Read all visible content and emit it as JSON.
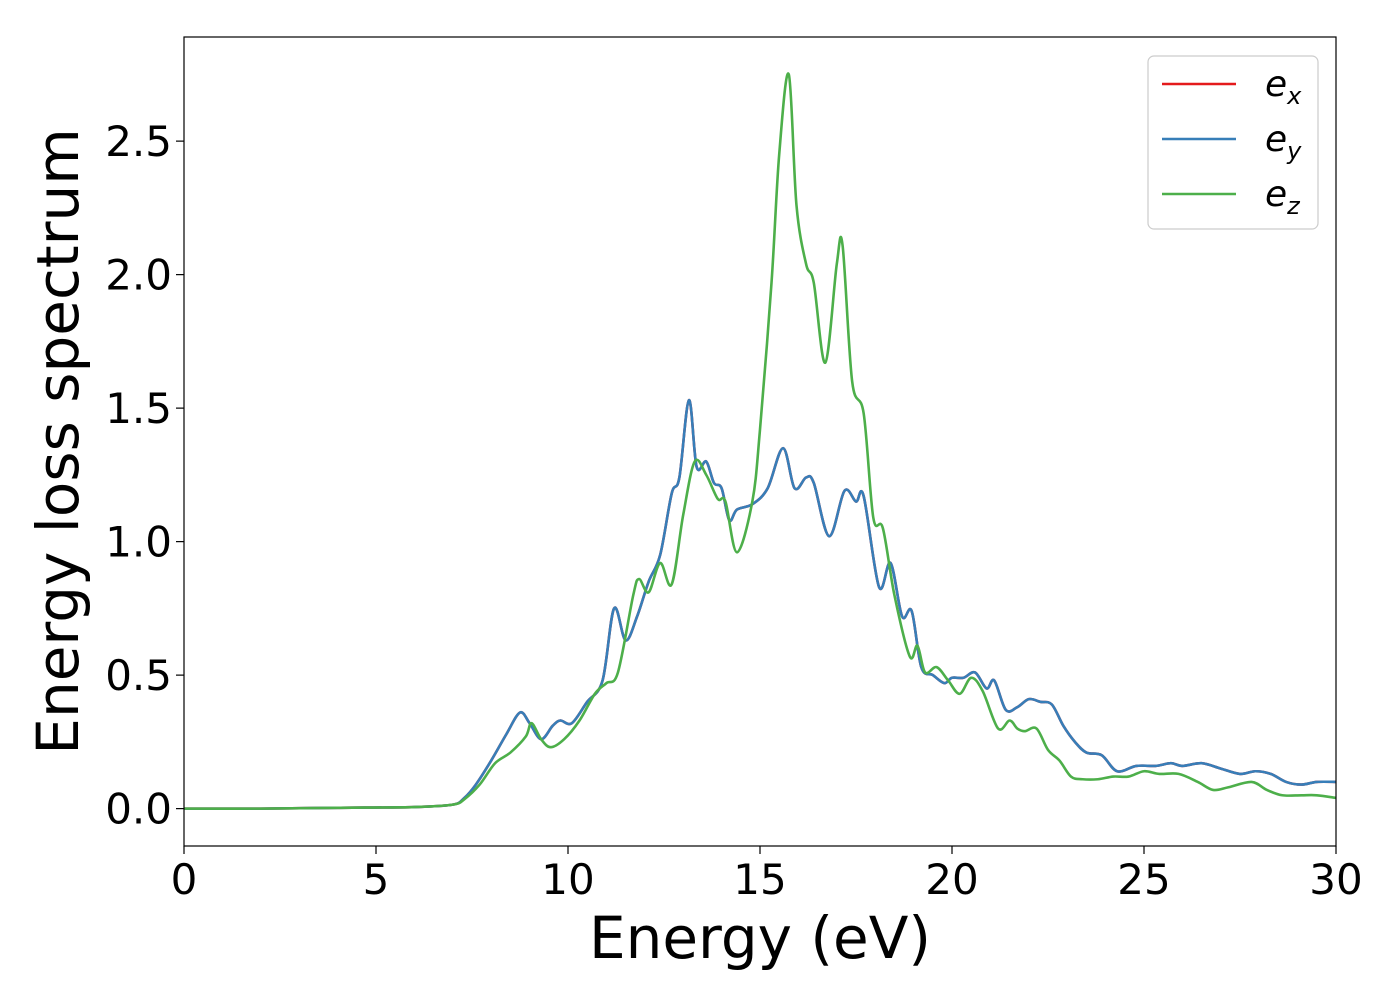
{
  "chart_data": {
    "type": "line",
    "xlabel": "Energy (eV)",
    "ylabel": "Energy loss spectrum",
    "xlim": [
      0,
      30
    ],
    "ylim": [
      -0.14,
      2.89
    ],
    "xticks": [
      0,
      5,
      10,
      15,
      20,
      25,
      30
    ],
    "xtick_labels": [
      "0",
      "5",
      "10",
      "15",
      "20",
      "25",
      "30"
    ],
    "yticks": [
      0.0,
      0.5,
      1.0,
      1.5,
      2.0,
      2.5
    ],
    "ytick_labels": [
      "0.0",
      "0.5",
      "1.0",
      "1.5",
      "2.0",
      "2.5"
    ],
    "grid": false,
    "legend_position": "top-right",
    "series": [
      {
        "name": "e_x",
        "legend_base": "e",
        "legend_sub": "x",
        "color": "#e41a1c",
        "x": [
          0,
          2,
          4,
          6,
          7,
          7.3,
          7.6,
          8.0,
          8.4,
          8.75,
          9.0,
          9.3,
          9.6,
          9.8,
          10.1,
          10.5,
          10.9,
          11.2,
          11.5,
          11.8,
          12.1,
          12.4,
          12.7,
          12.9,
          13.15,
          13.35,
          13.6,
          13.8,
          14.0,
          14.2,
          14.4,
          14.8,
          15.2,
          15.6,
          15.9,
          16.2,
          16.4,
          16.8,
          17.2,
          17.5,
          17.7,
          18.1,
          18.4,
          18.7,
          18.95,
          19.2,
          19.5,
          19.8,
          20.0,
          20.3,
          20.6,
          20.9,
          21.1,
          21.4,
          21.7,
          22.0,
          22.3,
          22.6,
          22.9,
          23.2,
          23.5,
          23.9,
          24.3,
          24.8,
          25.3,
          25.7,
          26.0,
          26.5,
          27.0,
          27.5,
          27.9,
          28.3,
          28.7,
          29.1,
          29.5,
          30.0
        ],
        "y": [
          0.0,
          0.0,
          0.003,
          0.006,
          0.015,
          0.04,
          0.09,
          0.18,
          0.28,
          0.36,
          0.32,
          0.26,
          0.31,
          0.33,
          0.32,
          0.4,
          0.48,
          0.75,
          0.63,
          0.72,
          0.85,
          0.95,
          1.18,
          1.24,
          1.53,
          1.28,
          1.3,
          1.22,
          1.2,
          1.08,
          1.12,
          1.14,
          1.2,
          1.35,
          1.2,
          1.24,
          1.22,
          1.02,
          1.19,
          1.15,
          1.17,
          0.83,
          0.92,
          0.72,
          0.74,
          0.53,
          0.5,
          0.47,
          0.49,
          0.49,
          0.51,
          0.45,
          0.48,
          0.37,
          0.38,
          0.41,
          0.4,
          0.39,
          0.31,
          0.25,
          0.21,
          0.2,
          0.14,
          0.16,
          0.16,
          0.17,
          0.16,
          0.17,
          0.15,
          0.13,
          0.14,
          0.13,
          0.1,
          0.09,
          0.1,
          0.1
        ]
      },
      {
        "name": "e_y",
        "legend_base": "e",
        "legend_sub": "y",
        "color": "#377eb8",
        "x": [
          0,
          2,
          4,
          6,
          7,
          7.3,
          7.6,
          8.0,
          8.4,
          8.75,
          9.0,
          9.3,
          9.6,
          9.8,
          10.1,
          10.5,
          10.9,
          11.2,
          11.5,
          11.8,
          12.1,
          12.4,
          12.7,
          12.9,
          13.15,
          13.35,
          13.6,
          13.8,
          14.0,
          14.2,
          14.4,
          14.8,
          15.2,
          15.6,
          15.9,
          16.2,
          16.4,
          16.8,
          17.2,
          17.5,
          17.7,
          18.1,
          18.4,
          18.7,
          18.95,
          19.2,
          19.5,
          19.8,
          20.0,
          20.3,
          20.6,
          20.9,
          21.1,
          21.4,
          21.7,
          22.0,
          22.3,
          22.6,
          22.9,
          23.2,
          23.5,
          23.9,
          24.3,
          24.8,
          25.3,
          25.7,
          26.0,
          26.5,
          27.0,
          27.5,
          27.9,
          28.3,
          28.7,
          29.1,
          29.5,
          30.0
        ],
        "y": [
          0.0,
          0.0,
          0.003,
          0.006,
          0.015,
          0.04,
          0.09,
          0.18,
          0.28,
          0.36,
          0.32,
          0.26,
          0.31,
          0.33,
          0.32,
          0.4,
          0.48,
          0.75,
          0.63,
          0.72,
          0.85,
          0.95,
          1.18,
          1.24,
          1.53,
          1.28,
          1.3,
          1.22,
          1.2,
          1.08,
          1.12,
          1.14,
          1.2,
          1.35,
          1.2,
          1.24,
          1.22,
          1.02,
          1.19,
          1.15,
          1.17,
          0.83,
          0.92,
          0.72,
          0.74,
          0.53,
          0.5,
          0.47,
          0.49,
          0.49,
          0.51,
          0.45,
          0.48,
          0.37,
          0.38,
          0.41,
          0.4,
          0.39,
          0.31,
          0.25,
          0.21,
          0.2,
          0.14,
          0.16,
          0.16,
          0.17,
          0.16,
          0.17,
          0.15,
          0.13,
          0.14,
          0.13,
          0.1,
          0.09,
          0.1,
          0.1
        ]
      },
      {
        "name": "e_z",
        "legend_base": "e",
        "legend_sub": "z",
        "color": "#4daf4a",
        "x": [
          0,
          2,
          4,
          6,
          7,
          7.3,
          7.7,
          8.1,
          8.5,
          8.9,
          9.05,
          9.3,
          9.55,
          9.9,
          10.3,
          10.7,
          11.0,
          11.3,
          11.7,
          11.85,
          12.1,
          12.4,
          12.7,
          13.0,
          13.3,
          13.6,
          13.9,
          14.1,
          14.4,
          14.8,
          15.0,
          15.3,
          15.5,
          15.75,
          15.95,
          16.2,
          16.4,
          16.7,
          17.0,
          17.15,
          17.4,
          17.7,
          17.95,
          18.2,
          18.5,
          18.9,
          19.1,
          19.3,
          19.6,
          19.9,
          20.2,
          20.5,
          20.8,
          21.2,
          21.5,
          21.7,
          21.9,
          22.2,
          22.5,
          22.8,
          23.1,
          23.4,
          23.8,
          24.2,
          24.6,
          25.0,
          25.4,
          25.9,
          26.4,
          26.8,
          27.2,
          27.8,
          28.2,
          28.6,
          29.1,
          29.5,
          30.0
        ],
        "y": [
          0.0,
          0.0,
          0.003,
          0.006,
          0.015,
          0.035,
          0.09,
          0.17,
          0.21,
          0.27,
          0.32,
          0.26,
          0.23,
          0.26,
          0.33,
          0.43,
          0.47,
          0.51,
          0.8,
          0.86,
          0.81,
          0.92,
          0.84,
          1.1,
          1.3,
          1.25,
          1.16,
          1.15,
          0.96,
          1.15,
          1.42,
          1.97,
          2.45,
          2.75,
          2.26,
          2.04,
          1.97,
          1.67,
          2.04,
          2.11,
          1.6,
          1.48,
          1.09,
          1.05,
          0.8,
          0.57,
          0.61,
          0.51,
          0.53,
          0.48,
          0.43,
          0.49,
          0.44,
          0.3,
          0.33,
          0.3,
          0.29,
          0.3,
          0.22,
          0.18,
          0.12,
          0.11,
          0.11,
          0.12,
          0.12,
          0.14,
          0.13,
          0.13,
          0.1,
          0.07,
          0.08,
          0.1,
          0.07,
          0.05,
          0.05,
          0.05,
          0.04
        ]
      }
    ]
  }
}
